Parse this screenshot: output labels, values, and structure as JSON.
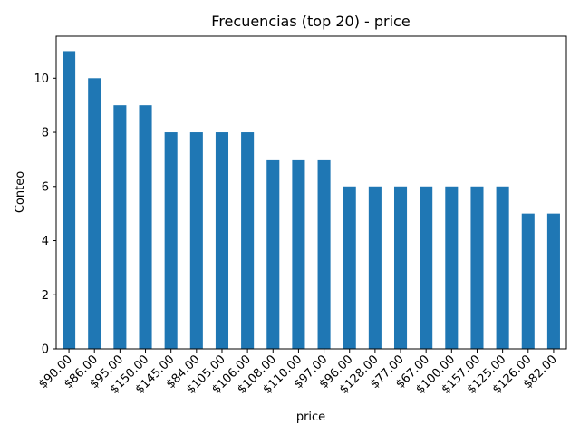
{
  "chart_data": {
    "type": "bar",
    "title": "Frecuencias (top 20) - price",
    "xlabel": "price",
    "ylabel": "Conteo",
    "categories": [
      "$90.00",
      "$86.00",
      "$95.00",
      "$150.00",
      "$145.00",
      "$84.00",
      "$105.00",
      "$106.00",
      "$108.00",
      "$110.00",
      "$97.00",
      "$96.00",
      "$128.00",
      "$77.00",
      "$67.00",
      "$100.00",
      "$157.00",
      "$125.00",
      "$126.00",
      "$82.00"
    ],
    "values": [
      11,
      10,
      9,
      9,
      8,
      8,
      8,
      8,
      7,
      7,
      7,
      6,
      6,
      6,
      6,
      6,
      6,
      6,
      5,
      5
    ],
    "ylim": [
      0,
      11.55
    ],
    "yticks": [
      0,
      2,
      4,
      6,
      8,
      10
    ],
    "grid": false,
    "legend": "none",
    "bar_color": "#1f77b4"
  }
}
